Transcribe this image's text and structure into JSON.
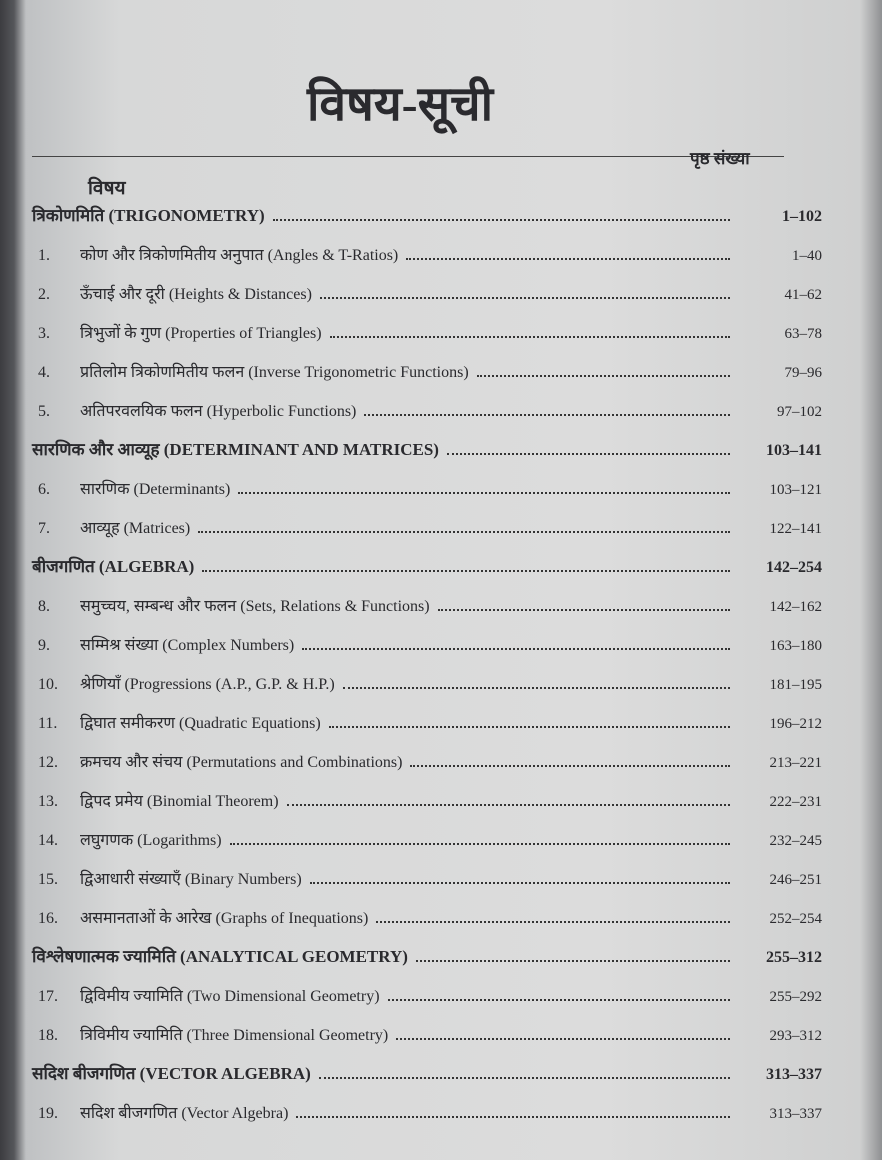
{
  "title": "विषय-सूची",
  "header": {
    "subject": "विषय",
    "pages": "पृष्ठ संख्या"
  },
  "sections": [
    {
      "title": "त्रिकोणमिति (TRIGONOMETRY)",
      "pages": "1–102",
      "items": [
        {
          "number": "1.",
          "text": "कोण और त्रिकोणमितीय अनुपात (Angles & T-Ratios)",
          "pages": "1–40"
        },
        {
          "number": "2.",
          "text": "ऊँचाई और दूरी (Heights & Distances)",
          "pages": "41–62"
        },
        {
          "number": "3.",
          "text": "त्रिभुजों के गुण (Properties of Triangles)",
          "pages": "63–78"
        },
        {
          "number": "4.",
          "text": "प्रतिलोम त्रिकोणमितीय फलन (Inverse Trigonometric Functions)",
          "pages": "79–96"
        },
        {
          "number": "5.",
          "text": "अतिपरवलयिक फलन (Hyperbolic Functions)",
          "pages": "97–102"
        }
      ]
    },
    {
      "title": "सारणिक और आव्यूह (DETERMINANT AND MATRICES)",
      "pages": "103–141",
      "items": [
        {
          "number": "6.",
          "text": "सारणिक (Determinants)",
          "pages": "103–121"
        },
        {
          "number": "7.",
          "text": "आव्यूह (Matrices)",
          "pages": "122–141"
        }
      ]
    },
    {
      "title": "बीजगणित (ALGEBRA)",
      "pages": "142–254",
      "items": [
        {
          "number": "8.",
          "text": "समुच्चय, सम्बन्ध और फलन (Sets, Relations & Functions)",
          "pages": "142–162"
        },
        {
          "number": "9.",
          "text": "सम्मिश्र संख्या (Complex Numbers)",
          "pages": "163–180"
        },
        {
          "number": "10.",
          "text": "श्रेणियाँ (Progressions (A.P., G.P. & H.P.)",
          "pages": "181–195"
        },
        {
          "number": "11.",
          "text": "द्विघात समीकरण (Quadratic Equations)",
          "pages": "196–212"
        },
        {
          "number": "12.",
          "text": "क्रमचय और संचय (Permutations and Combinations)",
          "pages": "213–221"
        },
        {
          "number": "13.",
          "text": "द्विपद प्रमेय (Binomial Theorem)",
          "pages": "222–231"
        },
        {
          "number": "14.",
          "text": "लघुगणक (Logarithms)",
          "pages": "232–245"
        },
        {
          "number": "15.",
          "text": "द्विआधारी संख्याएँ (Binary Numbers)",
          "pages": "246–251"
        },
        {
          "number": "16.",
          "text": "असमानताओं के आरेख (Graphs of Inequations)",
          "pages": "252–254"
        }
      ]
    },
    {
      "title": "विश्लेषणात्मक ज्यामिति (ANALYTICAL GEOMETRY)",
      "pages": "255–312",
      "items": [
        {
          "number": "17.",
          "text": "द्विविमीय ज्यामिति (Two Dimensional Geometry)",
          "pages": "255–292"
        },
        {
          "number": "18.",
          "text": "त्रिविमीय ज्यामिति (Three Dimensional Geometry)",
          "pages": "293–312"
        }
      ]
    },
    {
      "title": "सदिश बीजगणित (VECTOR ALGEBRA)",
      "pages": "313–337",
      "items": [
        {
          "number": "19.",
          "text": "सदिश बीजगणित (Vector Algebra)",
          "pages": "313–337"
        }
      ]
    }
  ]
}
